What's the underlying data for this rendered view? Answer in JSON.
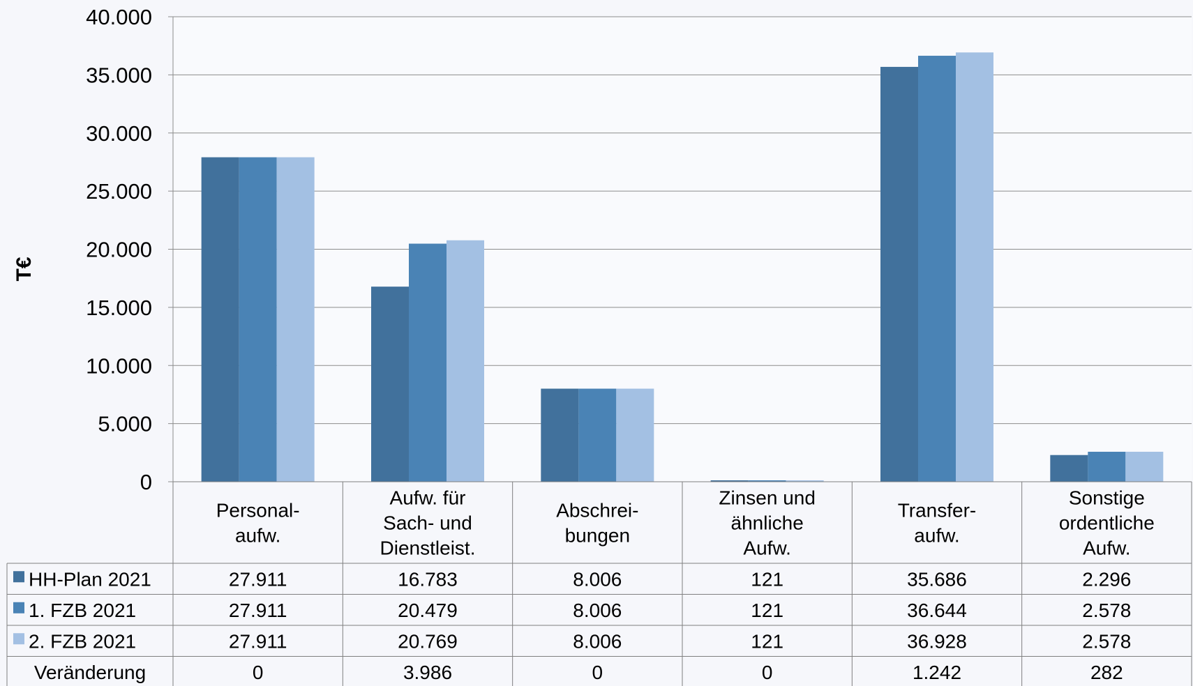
{
  "chart_data": {
    "type": "bar",
    "ylabel": "T€",
    "ylim": [
      0,
      40000
    ],
    "yticks": [
      0,
      5000,
      10000,
      15000,
      20000,
      25000,
      30000,
      35000,
      40000
    ],
    "ytick_labels": [
      "0",
      "5.000",
      "10.000",
      "15.000",
      "20.000",
      "25.000",
      "30.000",
      "35.000",
      "40.000"
    ],
    "categories": [
      [
        "Personal-",
        "aufw."
      ],
      [
        "Aufw. für",
        "Sach- und",
        "Dienstleist."
      ],
      [
        "Abschrei-",
        "bungen"
      ],
      [
        "Zinsen und",
        "ähnliche",
        "Aufw."
      ],
      [
        "Transfer-",
        "aufw."
      ],
      [
        "Sonstige",
        "ordentliche",
        "Aufw."
      ]
    ],
    "grid": true,
    "legend": "data-table-left",
    "series": [
      {
        "name": "HH-Plan 2021",
        "color": "#41719c",
        "values": [
          27911,
          16783,
          8006,
          121,
          35686,
          2296
        ],
        "labels": [
          "27.911",
          "16.783",
          "8.006",
          "121",
          "35.686",
          "2.296"
        ]
      },
      {
        "name": "1. FZB 2021",
        "color": "#4a83b5",
        "values": [
          27911,
          20479,
          8006,
          121,
          36644,
          2578
        ],
        "labels": [
          "27.911",
          "20.479",
          "8.006",
          "121",
          "36.644",
          "2.578"
        ]
      },
      {
        "name": "2. FZB 2021",
        "color": "#a3c0e3",
        "values": [
          27911,
          20769,
          8006,
          121,
          36928,
          2578
        ],
        "labels": [
          "27.911",
          "20.769",
          "8.006",
          "121",
          "36.928",
          "2.578"
        ]
      }
    ],
    "extra_row": {
      "name": "Veränderung",
      "labels": [
        "0",
        "3.986",
        "0",
        "0",
        "1.242",
        "282"
      ]
    }
  }
}
